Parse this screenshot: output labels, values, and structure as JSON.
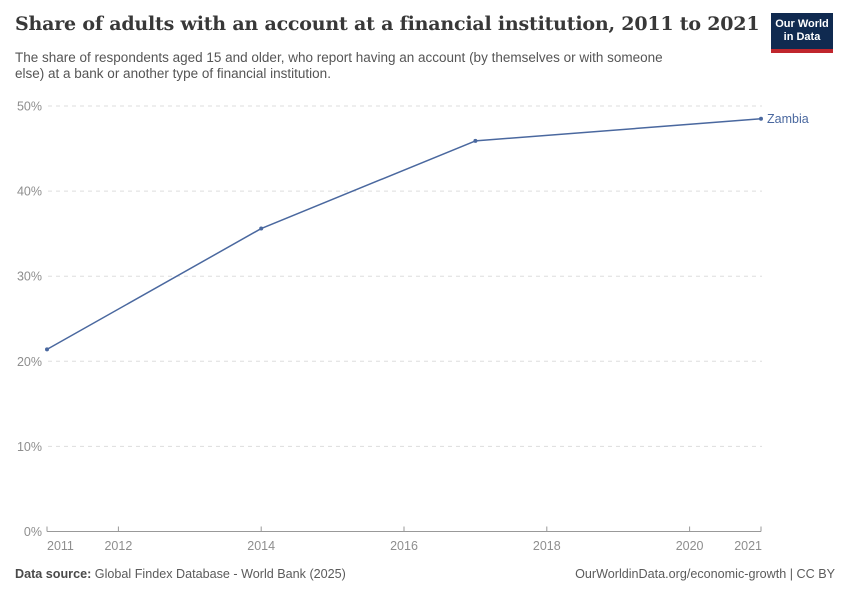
{
  "header": {
    "title": "Share of adults with an account at a financial institution, 2011 to 2021",
    "subtitle": "The share of respondents aged 15 and older, who report having an account (by themselves or with someone else) at a bank or another type of financial institution.",
    "logo": {
      "line1": "Our World",
      "line2": "in Data",
      "bg_color": "#102a50",
      "stripe_color": "#c0262d"
    }
  },
  "chart_data": {
    "type": "line",
    "title": "Share of adults with an account at a financial institution, 2011 to 2021",
    "xlabel": "",
    "ylabel": "",
    "xlim": [
      2011,
      2021
    ],
    "ylim": [
      0,
      50
    ],
    "x_ticks": [
      2011,
      2012,
      2014,
      2016,
      2018,
      2020,
      2021
    ],
    "y_ticks": [
      0,
      10,
      20,
      30,
      40,
      50
    ],
    "y_tick_suffix": "%",
    "grid": "horizontal dashed, light gray",
    "legend_position": "end-of-line label",
    "series": [
      {
        "name": "Zambia",
        "color": "#4a689f",
        "x": [
          2011,
          2014,
          2017,
          2021
        ],
        "values": [
          21.4,
          35.6,
          45.9,
          48.5
        ]
      }
    ]
  },
  "footer": {
    "datasource_label": "Data source:",
    "datasource_value": " Global Findex Database - World Bank (2025)",
    "right_text": "OurWorldinData.org/economic-growth | CC BY"
  },
  "colors": {
    "title": "#383838",
    "subtitle": "#555555",
    "axis_labels": "#8e8e8e",
    "gridline": "#dddddd",
    "axis_line": "#999999",
    "line": "#4a689f"
  }
}
